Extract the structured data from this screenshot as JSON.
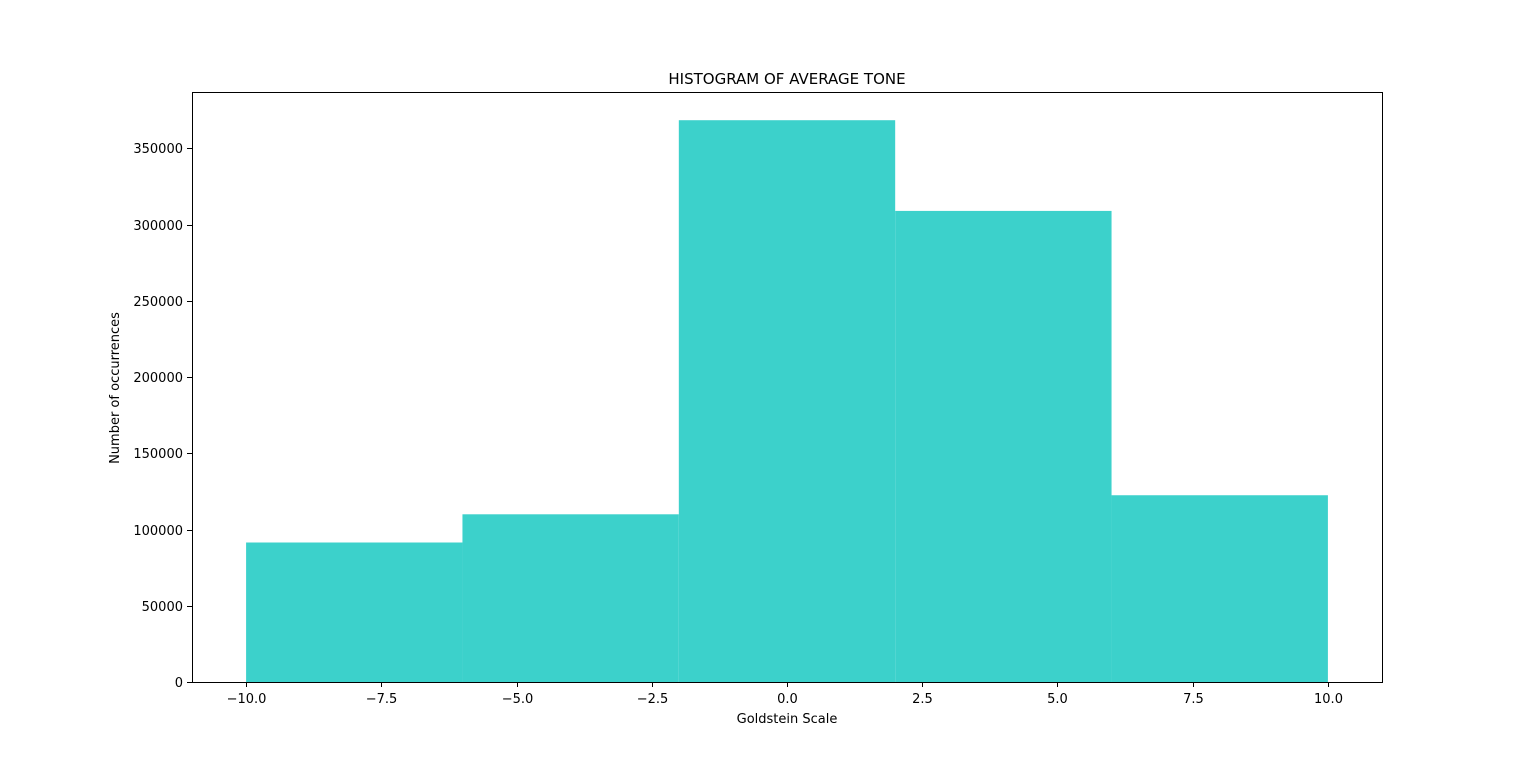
{
  "chart_data": {
    "type": "bar",
    "title": "HISTOGRAM OF AVERAGE TONE",
    "xlabel": "Goldstein Scale",
    "ylabel": "Number of occurrences",
    "bins": [
      {
        "start": -10,
        "end": -6,
        "value": 91500
      },
      {
        "start": -6,
        "end": -2,
        "value": 110000
      },
      {
        "start": -2,
        "end": 2,
        "value": 368500
      },
      {
        "start": 2,
        "end": 6,
        "value": 309000
      },
      {
        "start": 6,
        "end": 10,
        "value": 122500
      }
    ],
    "xlim": [
      -11,
      11
    ],
    "ylim": [
      0,
      387000
    ],
    "xticks": [
      -10.0,
      -7.5,
      -5.0,
      -2.5,
      0.0,
      2.5,
      5.0,
      7.5,
      10.0
    ],
    "xtick_labels": [
      "−10.0",
      "−7.5",
      "−5.0",
      "−2.5",
      "0.0",
      "2.5",
      "5.0",
      "7.5",
      "10.0"
    ],
    "yticks": [
      0,
      50000,
      100000,
      150000,
      200000,
      250000,
      300000,
      350000
    ],
    "ytick_labels": [
      "0",
      "50000",
      "100000",
      "150000",
      "200000",
      "250000",
      "300000",
      "350000"
    ],
    "bar_color": "#3cd1cb",
    "grid": false,
    "legend": "none"
  }
}
